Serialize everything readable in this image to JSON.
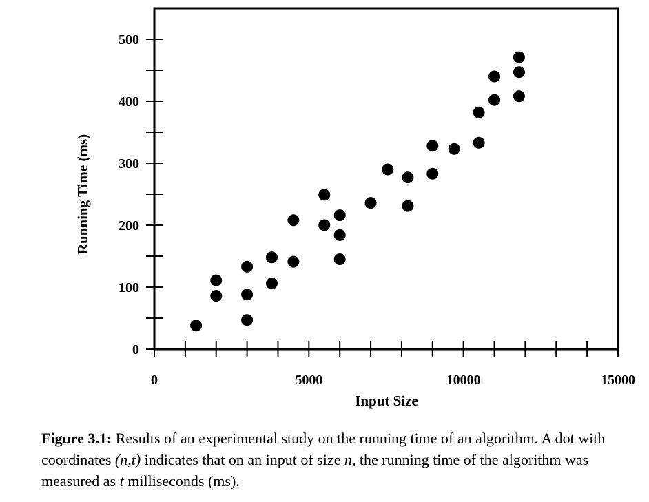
{
  "chart_data": {
    "type": "scatter",
    "xlabel": "Input Size",
    "ylabel": "Running Time (ms)",
    "xlim": [
      0,
      15000
    ],
    "ylim": [
      0,
      500
    ],
    "x_ticks": [
      0,
      5000,
      10000,
      15000
    ],
    "y_ticks": [
      0,
      100,
      200,
      300,
      400,
      500
    ],
    "grid": false,
    "points": [
      {
        "x": 1350,
        "y": 38
      },
      {
        "x": 2000,
        "y": 111
      },
      {
        "x": 2000,
        "y": 86
      },
      {
        "x": 3000,
        "y": 133
      },
      {
        "x": 3000,
        "y": 88
      },
      {
        "x": 3000,
        "y": 47
      },
      {
        "x": 3800,
        "y": 148
      },
      {
        "x": 3800,
        "y": 106
      },
      {
        "x": 4500,
        "y": 208
      },
      {
        "x": 4500,
        "y": 141
      },
      {
        "x": 5500,
        "y": 249
      },
      {
        "x": 5500,
        "y": 200
      },
      {
        "x": 6000,
        "y": 216
      },
      {
        "x": 6000,
        "y": 184
      },
      {
        "x": 6000,
        "y": 145
      },
      {
        "x": 7000,
        "y": 236
      },
      {
        "x": 7550,
        "y": 290
      },
      {
        "x": 8200,
        "y": 277
      },
      {
        "x": 8200,
        "y": 231
      },
      {
        "x": 9000,
        "y": 328
      },
      {
        "x": 9000,
        "y": 283
      },
      {
        "x": 9700,
        "y": 323
      },
      {
        "x": 10500,
        "y": 333
      },
      {
        "x": 10500,
        "y": 382
      },
      {
        "x": 11000,
        "y": 440
      },
      {
        "x": 11000,
        "y": 402
      },
      {
        "x": 11800,
        "y": 471
      },
      {
        "x": 11800,
        "y": 447
      },
      {
        "x": 11800,
        "y": 408
      }
    ]
  },
  "caption": {
    "label": "Figure 3.1:",
    "text_1": " Results of an experimental study on the running time of an algorithm. A dot with coordinates ",
    "coords": "(n,t)",
    "text_2": " indicates that on an input of size ",
    "var_n": "n",
    "text_3": ", the running time of the algorithm was measured as ",
    "var_t": "t",
    "text_4": " milliseconds (ms)."
  }
}
